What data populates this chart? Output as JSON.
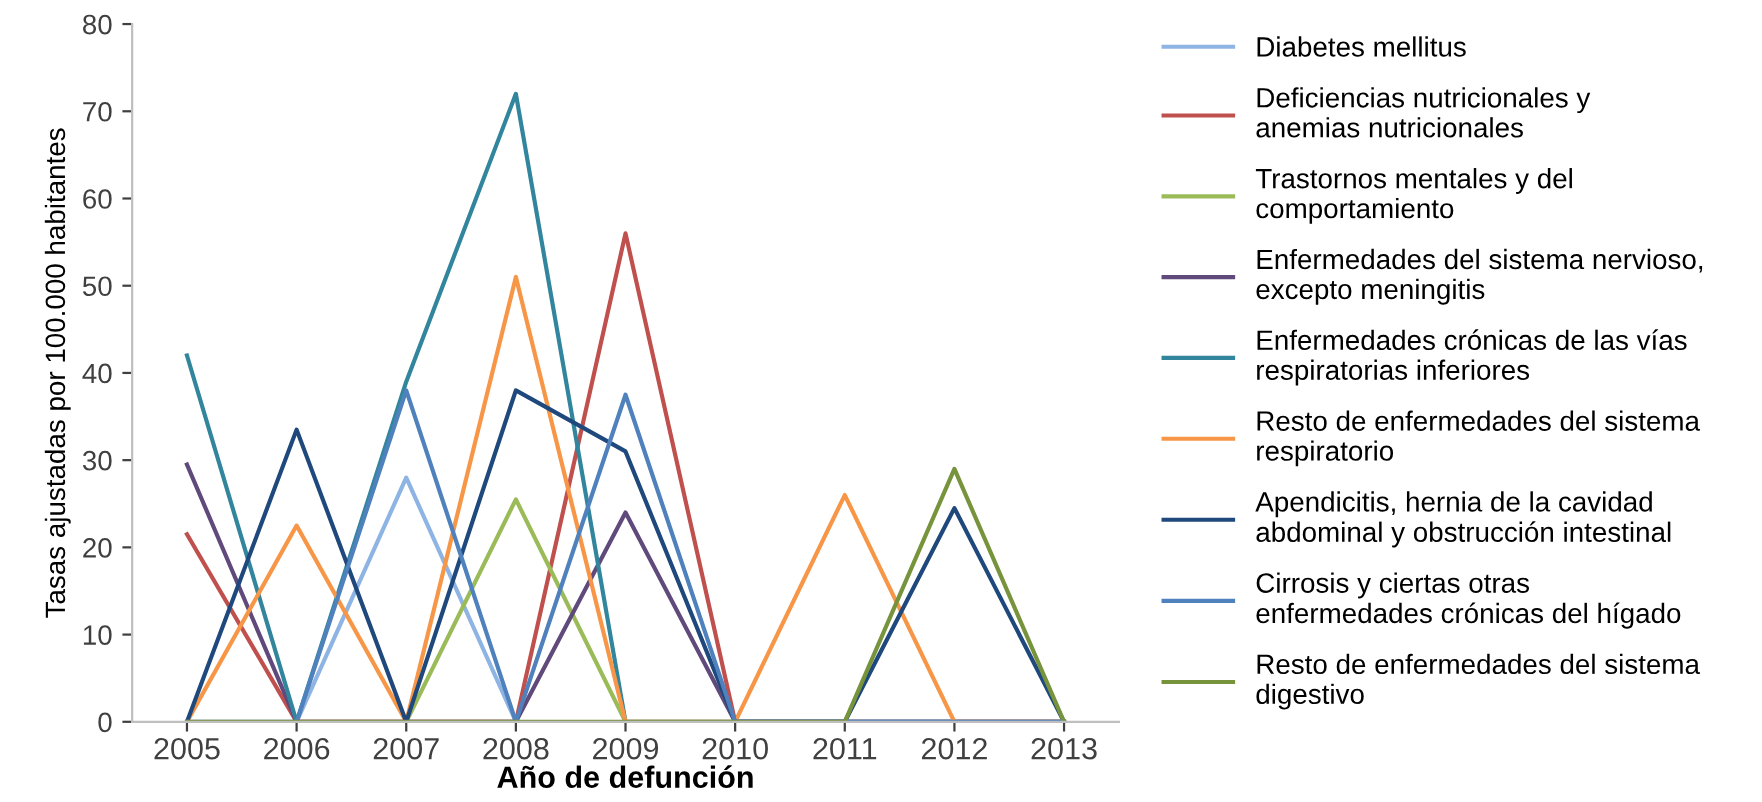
{
  "chart_data": {
    "type": "line",
    "xlabel": "Año de defunción",
    "ylabel": "Tasas ajustadas por 100.000 habitantes",
    "categories": [
      "2005",
      "2006",
      "2007",
      "2008",
      "2009",
      "2010",
      "2011",
      "2012",
      "2013"
    ],
    "ylim": [
      0,
      80
    ],
    "yticks": [
      0,
      10,
      20,
      30,
      40,
      50,
      60,
      70,
      80
    ],
    "grid": false,
    "legend": "right",
    "marker": "none",
    "line_style": "solid",
    "series": [
      {
        "name": "Diabetes mellitus",
        "color": "#8eb4e3",
        "values": [
          null,
          0,
          28,
          0,
          null,
          null,
          null,
          null,
          null
        ]
      },
      {
        "name": "Deficiencias nutricionales y anemias nutricionales",
        "color": "#c0504d",
        "values": [
          21.5,
          0,
          0,
          0,
          56,
          0,
          0,
          0,
          0
        ]
      },
      {
        "name": "Trastornos mentales y del comportamiento",
        "color": "#9bbb59",
        "values": [
          null,
          null,
          0,
          25.5,
          0,
          null,
          null,
          null,
          null
        ]
      },
      {
        "name": "Enfermedades del sistema nervioso, excepto meningitis",
        "color": "#604a7b",
        "values": [
          29.5,
          0,
          0,
          0,
          24,
          0,
          0,
          0,
          0
        ]
      },
      {
        "name": "Enfermedades crónicas de las vías respiratorias inferiores",
        "color": "#31859c",
        "values": [
          42,
          0,
          39,
          72,
          0,
          0,
          0,
          0,
          0
        ]
      },
      {
        "name": "Resto de enfermedades del sistema respiratorio",
        "color": "#f79646",
        "values": [
          0,
          22.5,
          0,
          51,
          0,
          0,
          26,
          0,
          0
        ]
      },
      {
        "name": "Apendicitis, hernia de la cavidad abdominal y obstrucción intestinal",
        "color": "#1f497d",
        "values": [
          0,
          33.5,
          0,
          38,
          31,
          0,
          0,
          24.5,
          0
        ]
      },
      {
        "name": "Cirrosis y ciertas otras enfermedades crónicas del hígado",
        "color": "#4f81bd",
        "values": [
          0,
          0,
          38,
          0,
          37.5,
          0,
          0,
          0,
          0
        ]
      },
      {
        "name": "Resto de enfermedades del sistema digestivo",
        "color": "#77933c",
        "values": [
          0,
          0,
          0,
          0,
          0,
          0,
          0,
          29,
          0
        ]
      }
    ]
  }
}
